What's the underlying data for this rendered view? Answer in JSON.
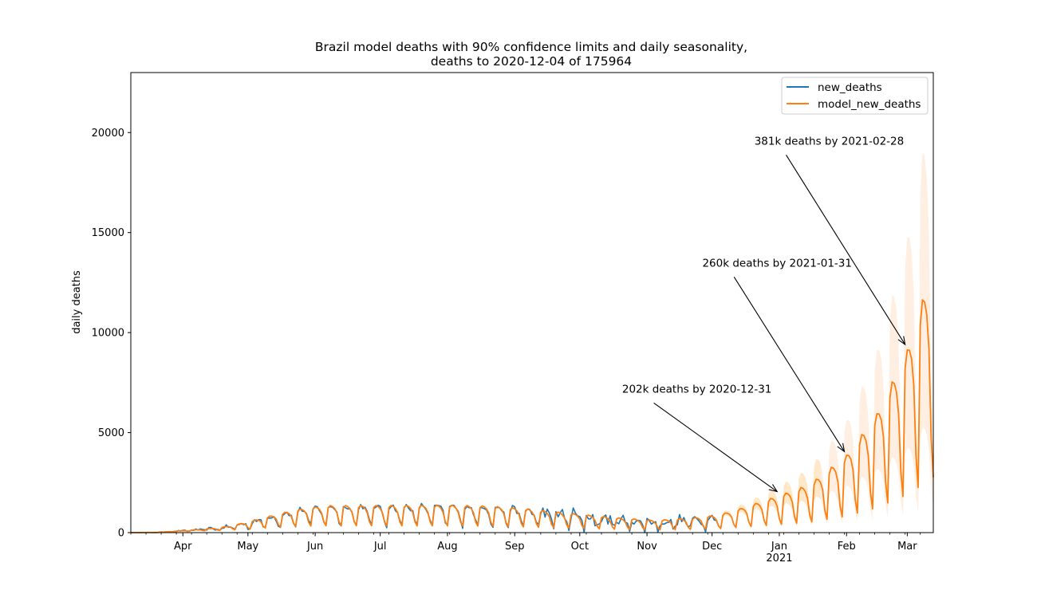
{
  "chart_data": {
    "type": "line",
    "title_line1": "Brazil model deaths with 90% confidence limits and daily seasonality,",
    "title_line2": "deaths to 2020-12-04 of 175964",
    "ylabel": "daily deaths",
    "xlabel": "",
    "x_start": "2020-03-08",
    "x_end": "2021-03-13",
    "last_observed": "2020-12-04",
    "ylim": [
      0,
      23000
    ],
    "yticks": [
      0,
      5000,
      10000,
      15000,
      20000
    ],
    "ytick_labels": [
      "0",
      "5000",
      "10000",
      "15000",
      "20000"
    ],
    "xticks": [
      {
        "date": "2020-04-01",
        "label": "Apr"
      },
      {
        "date": "2020-05-01",
        "label": "May"
      },
      {
        "date": "2020-06-01",
        "label": "Jun"
      },
      {
        "date": "2020-07-01",
        "label": "Jul"
      },
      {
        "date": "2020-08-01",
        "label": "Aug"
      },
      {
        "date": "2020-09-01",
        "label": "Sep"
      },
      {
        "date": "2020-10-01",
        "label": "Oct"
      },
      {
        "date": "2020-11-01",
        "label": "Nov"
      },
      {
        "date": "2020-12-01",
        "label": "Dec"
      },
      {
        "date": "2021-01-01",
        "label": "Jan"
      },
      {
        "date": "2021-02-01",
        "label": "Feb"
      },
      {
        "date": "2021-03-01",
        "label": "Mar"
      }
    ],
    "year_label": {
      "date": "2021-01-01",
      "label": "2021"
    },
    "series": [
      {
        "name": "new_deaths",
        "color": "#1f77b4"
      },
      {
        "name": "model_new_deaths",
        "color": "#ff7f0e"
      }
    ],
    "model_trend": [
      {
        "date": "2020-03-08",
        "value": 0
      },
      {
        "date": "2020-03-20",
        "value": 8
      },
      {
        "date": "2020-03-28",
        "value": 60
      },
      {
        "date": "2020-04-08",
        "value": 130
      },
      {
        "date": "2020-04-18",
        "value": 200
      },
      {
        "date": "2020-04-28",
        "value": 350
      },
      {
        "date": "2020-05-08",
        "value": 560
      },
      {
        "date": "2020-05-18",
        "value": 760
      },
      {
        "date": "2020-05-28",
        "value": 920
      },
      {
        "date": "2020-06-08",
        "value": 1000
      },
      {
        "date": "2020-07-01",
        "value": 1000
      },
      {
        "date": "2020-08-01",
        "value": 1010
      },
      {
        "date": "2020-08-20",
        "value": 980
      },
      {
        "date": "2020-09-05",
        "value": 880
      },
      {
        "date": "2020-09-20",
        "value": 760
      },
      {
        "date": "2020-10-05",
        "value": 640
      },
      {
        "date": "2020-10-20",
        "value": 530
      },
      {
        "date": "2020-11-05",
        "value": 450
      },
      {
        "date": "2020-11-20",
        "value": 520
      },
      {
        "date": "2020-12-04",
        "value": 640
      },
      {
        "date": "2020-12-15",
        "value": 900
      },
      {
        "date": "2021-01-01",
        "value": 1350
      },
      {
        "date": "2021-01-15",
        "value": 1750
      },
      {
        "date": "2021-02-01",
        "value": 2800
      },
      {
        "date": "2021-02-15",
        "value": 4300
      },
      {
        "date": "2021-03-01",
        "value": 6600
      },
      {
        "date": "2021-03-13",
        "value": 9700
      }
    ],
    "weekly_amplitude": [
      {
        "date": "2020-03-08",
        "value": 0
      },
      {
        "date": "2020-03-28",
        "value": 0.2
      },
      {
        "date": "2020-05-01",
        "value": 0.45
      },
      {
        "date": "2020-06-01",
        "value": 0.5
      },
      {
        "date": "2021-03-13",
        "value": 0.55
      }
    ],
    "observed_noise_amplitude": [
      {
        "date": "2020-03-08",
        "value": 0
      },
      {
        "date": "2020-04-01",
        "value": 30
      },
      {
        "date": "2020-05-01",
        "value": 120
      },
      {
        "date": "2020-09-01",
        "value": 120
      },
      {
        "date": "2020-09-20",
        "value": 350
      },
      {
        "date": "2020-10-15",
        "value": 300
      },
      {
        "date": "2020-11-15",
        "value": 250
      },
      {
        "date": "2020-12-04",
        "value": 120
      }
    ],
    "confidence_level": "90%",
    "annotations": [
      {
        "text": "202k deaths by 2020-12-31",
        "point_date": "2020-12-31",
        "point_value": 2050,
        "text_anchor_date": "2020-11-24",
        "text_anchor_value": 7000
      },
      {
        "text": "260k deaths by 2021-01-31",
        "point_date": "2021-01-31",
        "point_value": 4050,
        "text_anchor_date": "2020-12-31",
        "text_anchor_value": 13300
      },
      {
        "text": "381k deaths by 2021-02-28",
        "point_date": "2021-02-28",
        "point_value": 9400,
        "text_anchor_date": "2021-01-24",
        "text_anchor_value": 19400
      }
    ]
  }
}
